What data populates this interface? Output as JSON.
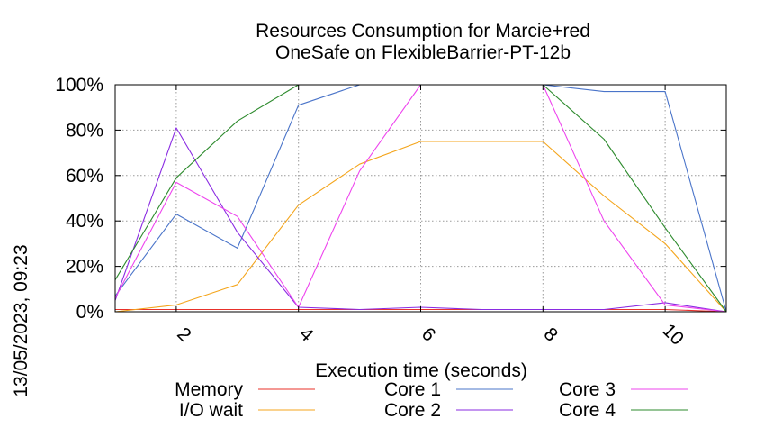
{
  "chart_data": {
    "type": "line",
    "title_lines": [
      "Resources Consumption for Marcie+red",
      "OneSafe on FlexibleBarrier-PT-12b"
    ],
    "xlabel": "Execution time (seconds)",
    "ylabel": "",
    "side_note": "13/05/2023, 09:23",
    "xlim": [
      1,
      11
    ],
    "ylim": [
      0,
      100
    ],
    "xticks": [
      2,
      4,
      6,
      8,
      10
    ],
    "yticks": [
      0,
      20,
      40,
      60,
      80,
      100
    ],
    "ytick_labels": [
      "0%",
      "20%",
      "40%",
      "60%",
      "80%",
      "100%"
    ],
    "grid": true,
    "legend_position": "bottom",
    "series": [
      {
        "name": "Memory",
        "color": "#e8302a",
        "x": [
          1,
          2,
          3,
          4,
          5,
          6,
          7,
          8,
          9,
          10,
          11
        ],
        "values": [
          1,
          1,
          1,
          1,
          1,
          1,
          1,
          1,
          1,
          1,
          0
        ]
      },
      {
        "name": "I/O wait",
        "color": "#f4a51c",
        "x": [
          1,
          2,
          3,
          4,
          5,
          6,
          7,
          8,
          9,
          10,
          11
        ],
        "values": [
          0,
          3,
          12,
          47,
          65,
          75,
          75,
          75,
          51,
          30,
          0
        ]
      },
      {
        "name": "Core 1",
        "color": "#4a74c9",
        "x": [
          1,
          2,
          3,
          4,
          5,
          6,
          7,
          8,
          9,
          10,
          11
        ],
        "values": [
          7,
          43,
          28,
          91,
          100,
          100,
          100,
          100,
          97,
          97,
          0
        ]
      },
      {
        "name": "Core 2",
        "color": "#8a2be2",
        "x": [
          1,
          2,
          3,
          4,
          5,
          6,
          7,
          8,
          9,
          10,
          11
        ],
        "values": [
          5,
          81,
          35,
          2,
          1,
          2,
          1,
          1,
          1,
          4,
          0
        ]
      },
      {
        "name": "Core 3",
        "color": "#ee44ee",
        "x": [
          1,
          2,
          3,
          4,
          5,
          6,
          7,
          8,
          9,
          10,
          11
        ],
        "values": [
          6,
          57,
          42,
          2,
          62,
          100,
          100,
          100,
          40,
          3,
          0
        ]
      },
      {
        "name": "Core 4",
        "color": "#2e8b2e",
        "x": [
          1,
          2,
          3,
          4,
          5,
          6,
          7,
          8,
          9,
          10,
          11
        ],
        "values": [
          14,
          59,
          84,
          100,
          100,
          100,
          100,
          100,
          76,
          37,
          0
        ]
      }
    ]
  }
}
